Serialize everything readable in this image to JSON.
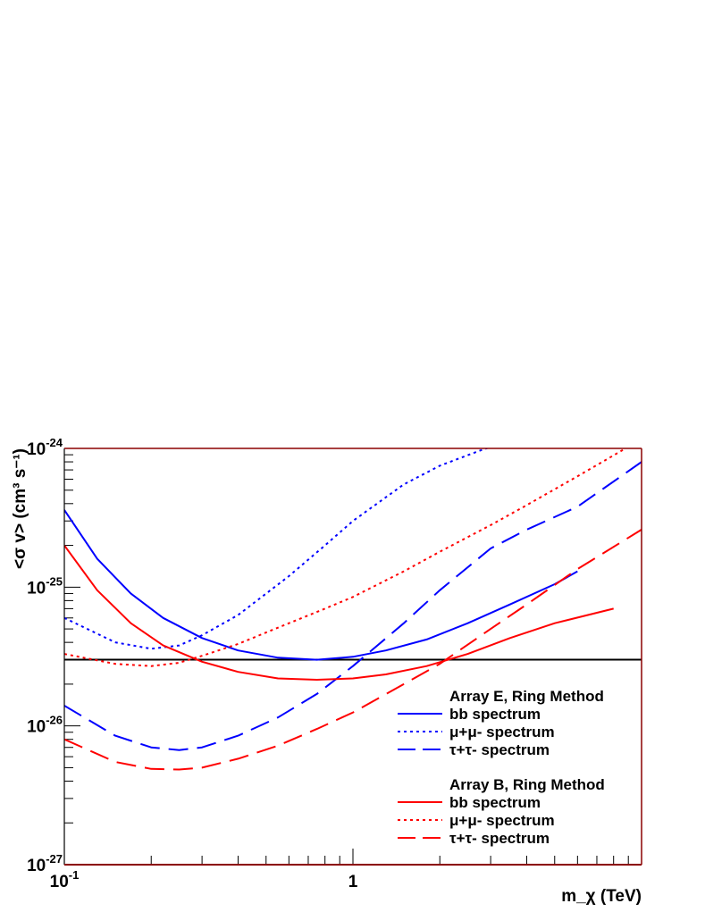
{
  "chart_data": {
    "type": "line",
    "xlabel": "m_χ (TeV)",
    "ylabel": "<σ v> (cm³ s⁻¹)",
    "x_scale": "log",
    "y_scale": "log",
    "xlim": [
      0.1,
      10
    ],
    "ylim": [
      1e-27,
      1e-24
    ],
    "x_tick_labels": [
      {
        "value": 0.1,
        "base": "10",
        "exp": "-1"
      },
      {
        "value": 1,
        "base": "1",
        "exp": ""
      }
    ],
    "y_tick_labels": [
      {
        "value": 1e-27,
        "base": "10",
        "exp": "-27"
      },
      {
        "value": 1e-26,
        "base": "10",
        "exp": "-26"
      },
      {
        "value": 1e-25,
        "base": "10",
        "exp": "-25"
      },
      {
        "value": 1e-24,
        "base": "10",
        "exp": "-24"
      }
    ],
    "reference_line": {
      "y": 3e-26,
      "color": "#000000"
    },
    "legend": {
      "placement": "bottom-right",
      "groups": [
        {
          "title": "Array E, Ring Method",
          "color": "#0000ff"
        },
        {
          "title": "Array B, Ring Method",
          "color": "#ff0000"
        }
      ]
    },
    "series": [
      {
        "name": "bb spectrum",
        "group": 0,
        "color": "#0000ff",
        "style": "solid",
        "x": [
          0.1,
          0.13,
          0.17,
          0.22,
          0.3,
          0.4,
          0.55,
          0.75,
          1.0,
          1.3,
          1.8,
          2.5,
          3.5,
          5.0,
          6.0
        ],
        "y": [
          3.6e-25,
          1.6e-25,
          9e-26,
          6e-26,
          4.3e-26,
          3.5e-26,
          3.1e-26,
          3e-26,
          3.15e-26,
          3.5e-26,
          4.2e-26,
          5.5e-26,
          7.5e-26,
          1.05e-25,
          1.3e-25
        ]
      },
      {
        "name": "μ+μ- spectrum",
        "group": 0,
        "color": "#0000ff",
        "style": "dotted",
        "x": [
          0.1,
          0.15,
          0.2,
          0.25,
          0.3,
          0.4,
          0.6,
          0.8,
          1.0,
          1.5,
          2.0,
          2.7,
          3.1
        ],
        "y": [
          6e-26,
          4e-26,
          3.6e-26,
          3.8e-26,
          4.5e-26,
          6.3e-26,
          1.2e-25,
          2e-25,
          3e-25,
          5.5e-25,
          7.5e-25,
          9.5e-25,
          1.05e-24
        ]
      },
      {
        "name": "τ+τ- spectrum",
        "group": 0,
        "color": "#0000ff",
        "style": "dashed",
        "x": [
          0.1,
          0.15,
          0.2,
          0.25,
          0.3,
          0.4,
          0.55,
          0.75,
          1.0,
          1.5,
          2.0,
          3.0,
          4.0,
          6.0,
          10.0
        ],
        "y": [
          1.4e-26,
          8.5e-27,
          7e-27,
          6.7e-27,
          7e-27,
          8.5e-27,
          1.15e-26,
          1.7e-26,
          2.7e-26,
          5.5e-26,
          9.5e-26,
          1.9e-25,
          2.6e-25,
          3.8e-25,
          8e-25
        ]
      },
      {
        "name": "bb spectrum",
        "group": 1,
        "color": "#ff0000",
        "style": "solid",
        "x": [
          0.1,
          0.13,
          0.17,
          0.22,
          0.3,
          0.4,
          0.55,
          0.75,
          1.0,
          1.3,
          1.8,
          2.5,
          3.5,
          5.0,
          8.0
        ],
        "y": [
          2e-25,
          9.5e-26,
          5.5e-26,
          3.8e-26,
          2.9e-26,
          2.45e-26,
          2.2e-26,
          2.15e-26,
          2.2e-26,
          2.35e-26,
          2.7e-26,
          3.3e-26,
          4.3e-26,
          5.5e-26,
          7e-26
        ]
      },
      {
        "name": "μ+μ- spectrum",
        "group": 1,
        "color": "#ff0000",
        "style": "dotted",
        "x": [
          0.1,
          0.15,
          0.2,
          0.25,
          0.3,
          0.4,
          0.6,
          0.8,
          1.0,
          1.5,
          2.0,
          3.0,
          4.0,
          6.0,
          8.8
        ],
        "y": [
          3.3e-26,
          2.8e-26,
          2.7e-26,
          2.85e-26,
          3.2e-26,
          3.9e-26,
          5.5e-26,
          7e-26,
          8.5e-26,
          1.3e-25,
          1.8e-25,
          2.8e-25,
          3.9e-25,
          6.3e-25,
          1e-24
        ]
      },
      {
        "name": "τ+τ- spectrum",
        "group": 1,
        "color": "#ff0000",
        "style": "dashed",
        "x": [
          0.1,
          0.15,
          0.2,
          0.25,
          0.3,
          0.4,
          0.55,
          0.75,
          1.0,
          1.5,
          2.0,
          3.0,
          4.0,
          6.0,
          10.0
        ],
        "y": [
          8e-27,
          5.5e-27,
          4.9e-27,
          4.85e-27,
          5e-27,
          5.8e-27,
          7.2e-27,
          9.5e-27,
          1.25e-26,
          2e-26,
          2.8e-26,
          5e-26,
          7.5e-26,
          1.35e-25,
          2.6e-25
        ]
      }
    ]
  }
}
